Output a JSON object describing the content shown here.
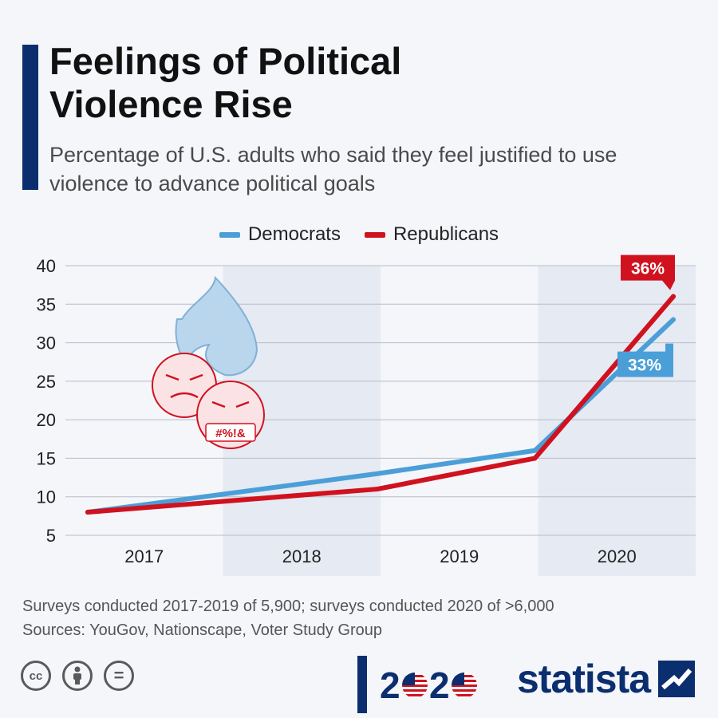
{
  "header": {
    "title_line1": "Feelings of Political",
    "title_line2": "Violence Rise",
    "subtitle": "Percentage of U.S. adults who said they feel justified to use violence to advance political goals"
  },
  "legend": {
    "democrats": "Democrats",
    "republicans": "Republicans",
    "placement": "top-center"
  },
  "chart_data": {
    "type": "line",
    "categories": [
      "2017",
      "2018",
      "2019",
      "2020"
    ],
    "yticks": [
      "40",
      "35",
      "30",
      "25",
      "20",
      "15",
      "10",
      "5"
    ],
    "ylim": [
      5,
      40
    ],
    "grid": true,
    "series": [
      {
        "name": "Democrats",
        "color": "#4b9fd8",
        "values": [
          8,
          13,
          16,
          33
        ],
        "end_label": "33%"
      },
      {
        "name": "Republicans",
        "color": "#d0121f",
        "values": [
          8,
          11,
          15,
          36
        ],
        "end_label": "36%"
      }
    ],
    "emoji_text": "#%!&"
  },
  "footnote": {
    "line1": "Surveys conducted 2017-2019 of 5,900; surveys conducted 2020 of >6,000",
    "line2": "Sources: YouGov, Nationscape, Voter Study Group"
  },
  "footer": {
    "cc_label": "cc",
    "equals_label": "=",
    "logo_year": "2020",
    "brand": "statista"
  },
  "colors": {
    "navy": "#0b2e6f",
    "democrats_blue": "#4b9fd8",
    "republicans_red": "#d0121f"
  }
}
